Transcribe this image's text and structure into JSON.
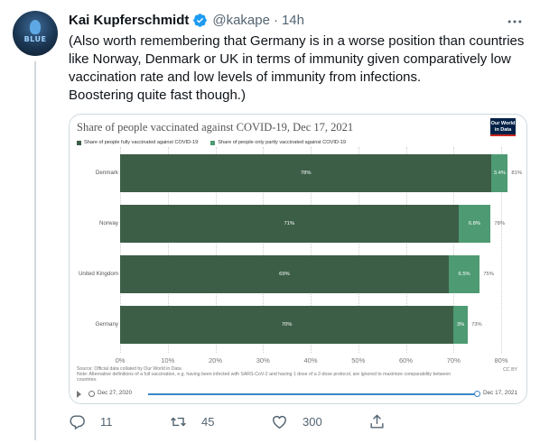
{
  "tweet": {
    "avatar_text": "BLUE",
    "author_name": "Kai Kupferschmidt",
    "handle": "@kakape",
    "separator": "·",
    "time": "14h",
    "text_lines": [
      "(Also worth remembering that Germany is in a worse position than countries",
      "like Norway, Denmark or UK in terms of immunity given comparatively low",
      "vaccination rate and low levels of immunity from infections.",
      "Boostering quite fast though.)"
    ]
  },
  "chart_data": {
    "type": "bar",
    "orientation": "horizontal",
    "stacked": true,
    "title": "Share of people vaccinated against COVID-19, Dec 17, 2021",
    "logo_text": "Our World in Data",
    "categories": [
      "Denmark",
      "Norway",
      "United Kingdom",
      "Germany"
    ],
    "series": [
      {
        "name": "Share of people fully vaccinated against COVID-19",
        "values": [
          78,
          71,
          69,
          70
        ],
        "labels": [
          "78%",
          "71%",
          "69%",
          "70%"
        ],
        "color": "#3c5e47"
      },
      {
        "name": "Share of people only partly vaccinated against COVID-19",
        "values": [
          3.4,
          6.8,
          6.5,
          3
        ],
        "labels": [
          "3.4%",
          "6.8%",
          "6.5%",
          "3%"
        ],
        "color": "#4e9a73"
      }
    ],
    "totals": [
      "81%",
      "78%",
      "75%",
      "73%"
    ],
    "xlim": [
      0,
      80
    ],
    "xticks": [
      "0%",
      "10%",
      "20%",
      "30%",
      "40%",
      "50%",
      "60%",
      "70%",
      "80%"
    ],
    "legend_position": "top-left",
    "grid": true,
    "source_lines": [
      "Source: Official data collated by Our World in Data",
      "Note: Alternative definitions of a full vaccination, e.g. having been infected with SARS-CoV-2 and having 1 dose of a 2-dose protocol, are ignored to maximize comparability between",
      "countries."
    ],
    "license": "CC BY",
    "timeline": {
      "start": "Dec 27, 2020",
      "end": "Dec 17, 2021"
    }
  },
  "actions": {
    "reply_count": "11",
    "retweet_count": "45",
    "like_count": "300"
  },
  "icons": [
    "verified-icon",
    "more-icon",
    "reply-icon",
    "retweet-icon",
    "like-icon",
    "share-icon",
    "play-icon"
  ],
  "colors": {
    "verified": "#1d9bf0",
    "muted": "#536471",
    "fully": "#3c5e47",
    "partly": "#4e9a73"
  }
}
